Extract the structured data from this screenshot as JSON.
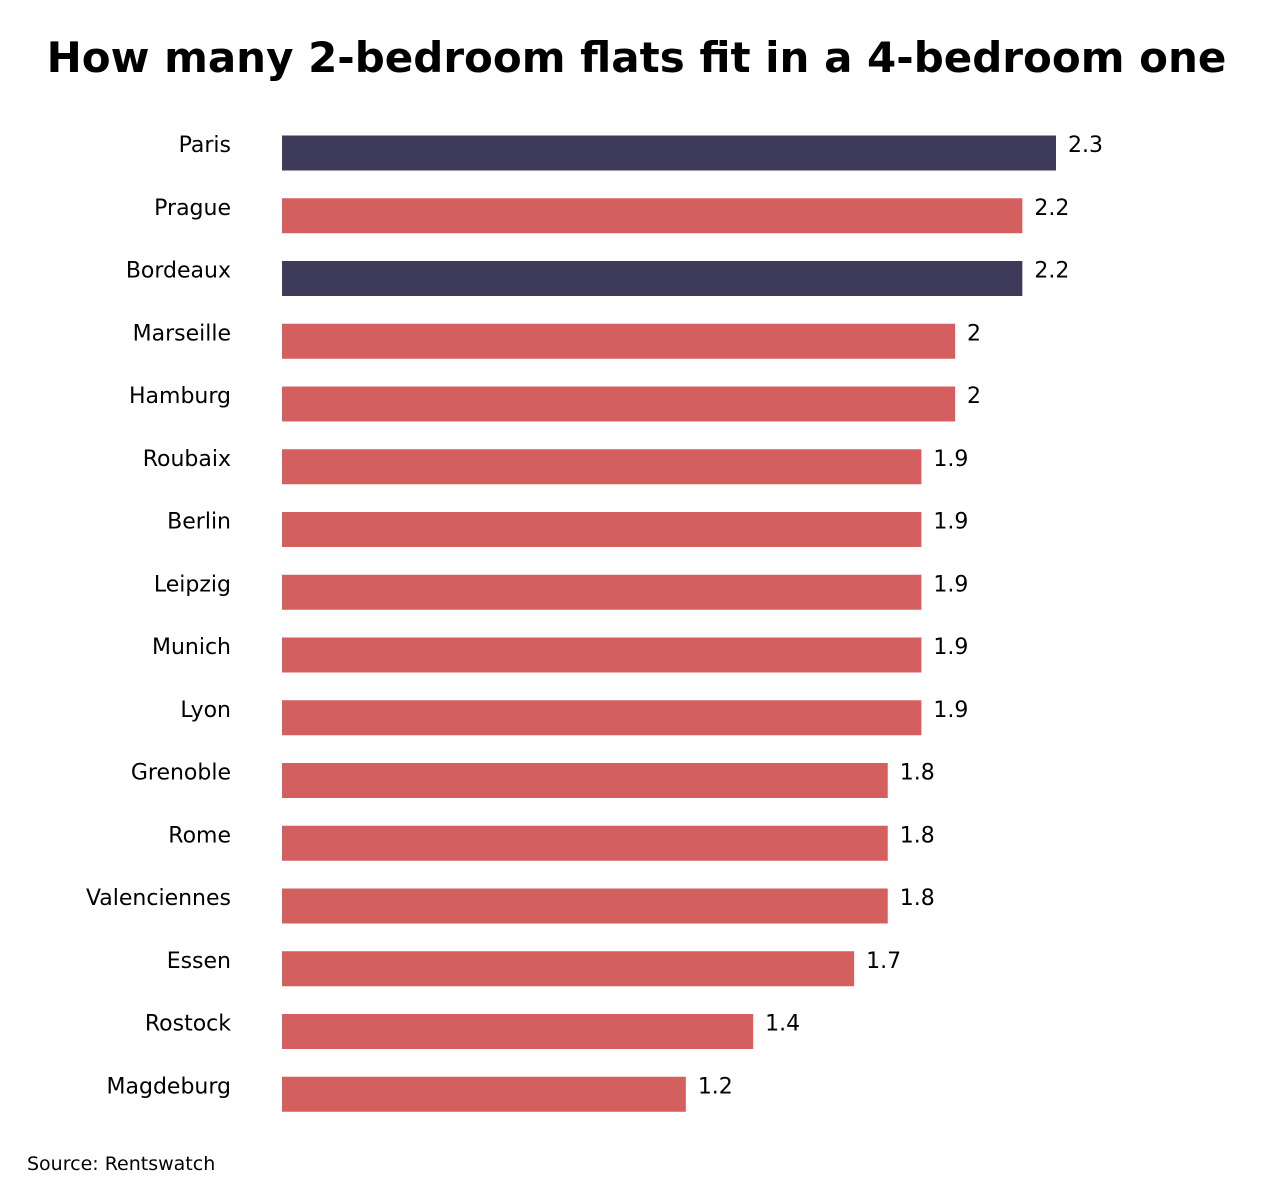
{
  "chart_data": {
    "type": "bar",
    "orientation": "horizontal",
    "title": "How many 2-bedroom flats fit in a 4-bedroom one",
    "categories": [
      "Paris",
      "Prague",
      "Bordeaux",
      "Marseille",
      "Hamburg",
      "Roubaix",
      "Berlin",
      "Leipzig",
      "Munich",
      "Lyon",
      "Grenoble",
      "Rome",
      "Valenciennes",
      "Essen",
      "Rostock",
      "Magdeburg"
    ],
    "values": [
      2.3,
      2.2,
      2.2,
      2.0,
      2.0,
      1.9,
      1.9,
      1.9,
      1.9,
      1.9,
      1.8,
      1.8,
      1.8,
      1.7,
      1.4,
      1.2
    ],
    "value_labels": [
      "2.3",
      "2.2",
      "2.2",
      "2",
      "2",
      "1.9",
      "1.9",
      "1.9",
      "1.9",
      "1.9",
      "1.8",
      "1.8",
      "1.8",
      "1.7",
      "1.4",
      "1.2"
    ],
    "highlighted": [
      "Paris",
      "Bordeaux"
    ],
    "colors": {
      "default": "#d45f5f",
      "highlight": "#3d3a5a"
    },
    "xlim": [
      0,
      2.3
    ],
    "grid": false,
    "axes_visible": false
  },
  "source": "Source: Rentswatch"
}
